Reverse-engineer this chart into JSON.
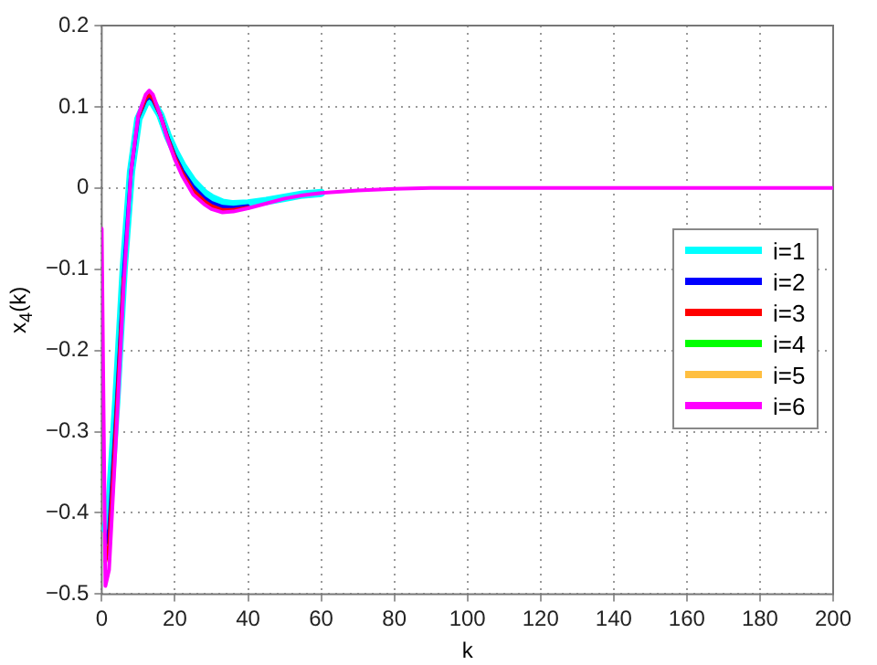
{
  "chart_data": {
    "type": "line",
    "xlabel": "k",
    "ylabel": "x$_{4}$(k)",
    "x": [
      0,
      1,
      2,
      4,
      6,
      8,
      10,
      12,
      13,
      14,
      16,
      18,
      20,
      22,
      25,
      28,
      30,
      33,
      36,
      40,
      45,
      50,
      55,
      60,
      70,
      80,
      90,
      100,
      200
    ],
    "xlim": [
      0,
      200
    ],
    "xticks": [
      0,
      20,
      40,
      60,
      80,
      100,
      120,
      140,
      160,
      180,
      200
    ],
    "ylim": [
      -0.5,
      0.2
    ],
    "yticks": [
      -0.5,
      -0.4,
      -0.3,
      -0.2,
      -0.1,
      0,
      0.1,
      0.2
    ],
    "grid": true,
    "legend": "right",
    "marker": "none",
    "line_style": "solid",
    "series": [
      {
        "name": "i=1",
        "color": "#00ffff",
        "values": [
          null,
          -0.42,
          -0.4,
          -0.26,
          -0.1,
          0.02,
          0.085,
          0.105,
          0.108,
          0.105,
          0.09,
          0.065,
          0.045,
          0.028,
          0.008,
          -0.006,
          -0.012,
          -0.018,
          -0.02,
          -0.019,
          -0.016,
          -0.012,
          -0.008,
          -0.006,
          null,
          null,
          null,
          null,
          null
        ]
      },
      {
        "name": "i=2",
        "color": "#0000ff",
        "values": [
          null,
          -0.44,
          -0.42,
          -0.27,
          -0.105,
          0.02,
          0.087,
          0.108,
          0.112,
          0.108,
          0.09,
          0.063,
          0.04,
          0.022,
          0.002,
          -0.012,
          -0.018,
          -0.023,
          -0.024,
          -0.022,
          null,
          null,
          null,
          null,
          null,
          null,
          null,
          null,
          null
        ]
      },
      {
        "name": "i=3",
        "color": "#ff0000",
        "values": [
          null,
          -0.46,
          -0.44,
          -0.28,
          -0.11,
          null,
          0.088,
          0.11,
          0.115,
          0.11,
          0.09,
          0.062,
          0.038,
          0.019,
          -0.003,
          -0.016,
          -0.022,
          -0.027,
          -0.027,
          -0.024,
          null,
          null,
          null,
          null,
          null,
          null,
          null,
          null,
          null
        ]
      },
      {
        "name": "i=4",
        "color": "#00ff00",
        "values": [
          null,
          null,
          null,
          null,
          null,
          null,
          null,
          null,
          null,
          null,
          null,
          null,
          null,
          null,
          null,
          null,
          null,
          null,
          null,
          null,
          null,
          null,
          null,
          null,
          null,
          null,
          null,
          null,
          null
        ]
      },
      {
        "name": "i=5",
        "color": "#ffbf40",
        "values": [
          null,
          null,
          null,
          null,
          null,
          null,
          null,
          null,
          null,
          null,
          null,
          null,
          null,
          null,
          null,
          null,
          null,
          null,
          null,
          null,
          null,
          null,
          null,
          null,
          null,
          null,
          null,
          null,
          null
        ]
      },
      {
        "name": "i=6",
        "color": "#ff00ff",
        "values": [
          -0.05,
          -0.49,
          -0.47,
          -0.3,
          -0.12,
          0.02,
          0.09,
          0.115,
          0.12,
          0.115,
          0.09,
          0.06,
          0.035,
          0.015,
          -0.008,
          -0.02,
          -0.026,
          -0.03,
          -0.029,
          -0.025,
          -0.019,
          -0.013,
          -0.009,
          -0.006,
          -0.003,
          -0.001,
          0,
          0,
          0
        ]
      }
    ]
  }
}
